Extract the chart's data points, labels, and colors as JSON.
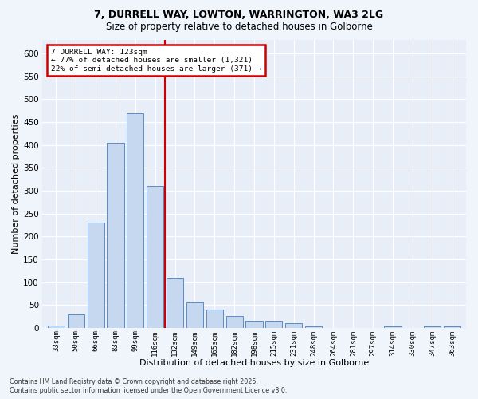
{
  "title_line1": "7, DURRELL WAY, LOWTON, WARRINGTON, WA3 2LG",
  "title_line2": "Size of property relative to detached houses in Golborne",
  "xlabel": "Distribution of detached houses by size in Golborne",
  "ylabel": "Number of detached properties",
  "bar_labels": [
    "33sqm",
    "50sqm",
    "66sqm",
    "83sqm",
    "99sqm",
    "116sqm",
    "132sqm",
    "149sqm",
    "165sqm",
    "182sqm",
    "198sqm",
    "215sqm",
    "231sqm",
    "248sqm",
    "264sqm",
    "281sqm",
    "297sqm",
    "314sqm",
    "330sqm",
    "347sqm",
    "363sqm"
  ],
  "bar_values": [
    5,
    30,
    230,
    405,
    470,
    310,
    110,
    55,
    40,
    25,
    15,
    15,
    10,
    4,
    0,
    0,
    0,
    4,
    0,
    4,
    4
  ],
  "bar_color": "#c5d8f0",
  "bar_edge_color": "#5b8cc8",
  "vline_color": "#cc0000",
  "annotation_title": "7 DURRELL WAY: 123sqm",
  "annotation_line1": "← 77% of detached houses are smaller (1,321)",
  "annotation_line2": "22% of semi-detached houses are larger (371) →",
  "annotation_box_color": "#cc0000",
  "annotation_bg": "#ffffff",
  "ylim": [
    0,
    630
  ],
  "yticks": [
    0,
    50,
    100,
    150,
    200,
    250,
    300,
    350,
    400,
    450,
    500,
    550,
    600
  ],
  "footer_line1": "Contains HM Land Registry data © Crown copyright and database right 2025.",
  "footer_line2": "Contains public sector information licensed under the Open Government Licence v3.0.",
  "bg_color": "#f0f4fb",
  "plot_bg_color": "#e8eef8",
  "grid_color": "#ffffff"
}
